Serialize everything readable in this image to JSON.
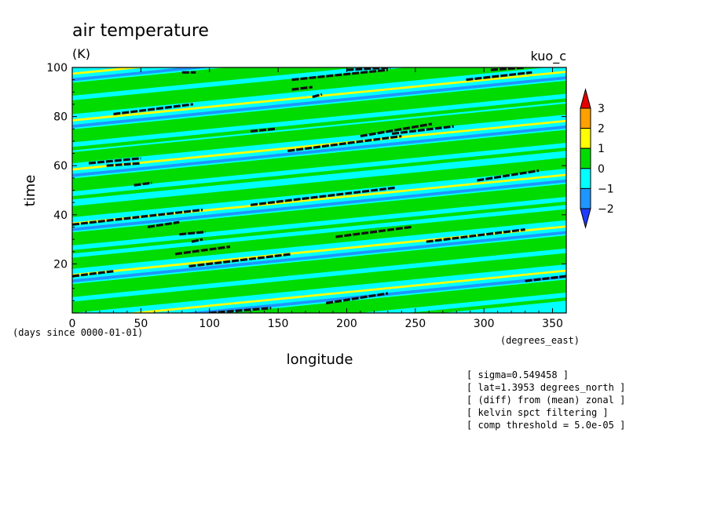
{
  "chart_data": {
    "type": "heatmap",
    "title": "air temperature",
    "units": "(K)",
    "model_label": "kuo_c",
    "xlabel": "longitude",
    "ylabel": "time",
    "x_units": "(degrees_east)",
    "y_units": "(days since 0000-01-01)",
    "xlim": [
      0,
      360
    ],
    "ylim": [
      0,
      100
    ],
    "x_ticks": [
      0,
      50,
      100,
      150,
      200,
      250,
      300,
      350
    ],
    "y_ticks": [
      20,
      40,
      60,
      80,
      100
    ],
    "colorbar": {
      "levels": [
        -2,
        -1,
        0,
        1,
        2,
        3
      ],
      "colors": [
        "#1e3cff",
        "#1e96ff",
        "#00ffff",
        "#00dc00",
        "#ffff00",
        "#ffa000",
        "#e60000"
      ]
    },
    "wave_pattern": {
      "background_level_color": "#00ffff",
      "band_slope_days_per_degree": 0.055,
      "warm_band_intercepts_days": [
        -3,
        15,
        36,
        58,
        78,
        97
      ],
      "notes_info_lines": [
        "[ sigma=0.549458 ]",
        "[ lat=1.3953 degrees_north ]",
        "[ (diff) from (mean) zonal ]",
        "[ kelvin spct filtering ]",
        "[ comp threshold = 5.0e-05 ]"
      ]
    },
    "threshold_segments": [
      {
        "x0": 0,
        "y0": 15,
        "x1": 30,
        "y1": 17
      },
      {
        "x0": 0,
        "y0": 36,
        "x1": 95,
        "y1": 42
      },
      {
        "x0": 130,
        "y0": 44,
        "x1": 235,
        "y1": 51
      },
      {
        "x0": 85,
        "y0": 19,
        "x1": 160,
        "y1": 24
      },
      {
        "x0": 75,
        "y0": 24,
        "x1": 115,
        "y1": 27
      },
      {
        "x0": 55,
        "y0": 35,
        "x1": 78,
        "y1": 37
      },
      {
        "x0": 78,
        "y0": 32,
        "x1": 97,
        "y1": 33
      },
      {
        "x0": 87,
        "y0": 29,
        "x1": 95,
        "y1": 30
      },
      {
        "x0": 192,
        "y0": 31,
        "x1": 247,
        "y1": 35
      },
      {
        "x0": 258,
        "y0": 29,
        "x1": 330,
        "y1": 34
      },
      {
        "x0": 30,
        "y0": 81,
        "x1": 88,
        "y1": 85
      },
      {
        "x0": 130,
        "y0": 74,
        "x1": 148,
        "y1": 75
      },
      {
        "x0": 157,
        "y0": 66,
        "x1": 240,
        "y1": 72
      },
      {
        "x0": 210,
        "y0": 72,
        "x1": 262,
        "y1": 77
      },
      {
        "x0": 233,
        "y0": 73,
        "x1": 278,
        "y1": 76
      },
      {
        "x0": 12,
        "y0": 61,
        "x1": 50,
        "y1": 63
      },
      {
        "x0": 25,
        "y0": 60,
        "x1": 50,
        "y1": 61
      },
      {
        "x0": 45,
        "y0": 52,
        "x1": 58,
        "y1": 53
      },
      {
        "x0": 295,
        "y0": 54,
        "x1": 340,
        "y1": 58
      },
      {
        "x0": 160,
        "y0": 95,
        "x1": 230,
        "y1": 99
      },
      {
        "x0": 175,
        "y0": 88,
        "x1": 182,
        "y1": 89
      },
      {
        "x0": 160,
        "y0": 91,
        "x1": 175,
        "y1": 92
      },
      {
        "x0": 80,
        "y0": 98,
        "x1": 90,
        "y1": 98
      },
      {
        "x0": 200,
        "y0": 99,
        "x1": 232,
        "y1": 100
      },
      {
        "x0": 287,
        "y0": 95,
        "x1": 335,
        "y1": 98
      },
      {
        "x0": 305,
        "y0": 99,
        "x1": 330,
        "y1": 100
      },
      {
        "x0": 100,
        "y0": 0,
        "x1": 145,
        "y1": 2
      },
      {
        "x0": 185,
        "y0": 4,
        "x1": 230,
        "y1": 8
      },
      {
        "x0": 330,
        "y0": 13,
        "x1": 360,
        "y1": 15
      }
    ]
  }
}
